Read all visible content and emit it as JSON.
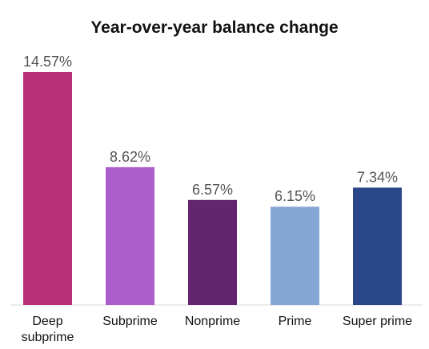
{
  "chart_data": {
    "type": "bar",
    "title": "Year-over-year balance change",
    "xlabel": "",
    "ylabel": "",
    "ylim": [
      0,
      14.57
    ],
    "grid": false,
    "legend": "none",
    "categories": [
      [
        "Deep",
        "subprime"
      ],
      [
        "Subprime"
      ],
      [
        "Nonprime"
      ],
      [
        "Prime"
      ],
      [
        "Super prime"
      ]
    ],
    "values": [
      14.57,
      8.62,
      6.57,
      6.15,
      7.34
    ],
    "data_labels": [
      "14.57%",
      "8.62%",
      "6.57%",
      "6.15%",
      "7.34%"
    ],
    "colors": [
      "#B9307A",
      "#AB5ECB",
      "#63256F",
      "#86A6D4",
      "#2A4789"
    ]
  }
}
